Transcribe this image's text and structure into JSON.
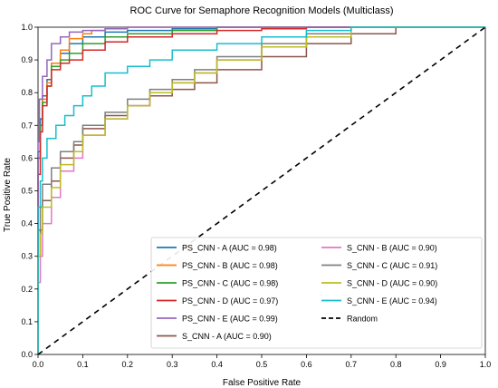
{
  "chart_data": {
    "type": "line",
    "title": "ROC Curve for Semaphore Recognition Models (Multiclass)",
    "xlabel": "False Positive Rate",
    "ylabel": "True Positive Rate",
    "xlim": [
      0.0,
      1.0
    ],
    "ylim": [
      0.0,
      1.0
    ],
    "x_ticks": [
      "0.0",
      "0.1",
      "0.2",
      "0.3",
      "0.4",
      "0.5",
      "0.6",
      "0.7",
      "0.8",
      "0.9",
      "1.0"
    ],
    "y_ticks": [
      "0.0",
      "0.1",
      "0.2",
      "0.3",
      "0.4",
      "0.5",
      "0.6",
      "0.7",
      "0.8",
      "0.9",
      "1.0"
    ],
    "grid": false,
    "legend_position": "lower-right",
    "series": [
      {
        "name": "PS_CNN - A (AUC = 0.98)",
        "color": "#1f77b4",
        "x": [
          0,
          0.005,
          0.01,
          0.02,
          0.03,
          0.05,
          0.07,
          0.1,
          0.15,
          0.2,
          0.3,
          0.4,
          0.6,
          0.8,
          1.0
        ],
        "y": [
          0,
          0.62,
          0.72,
          0.79,
          0.84,
          0.89,
          0.92,
          0.95,
          0.97,
          0.985,
          0.99,
          0.995,
          1.0,
          1.0,
          1.0
        ]
      },
      {
        "name": "PS_CNN - B (AUC = 0.98)",
        "color": "#ff7f0e",
        "x": [
          0,
          0.005,
          0.01,
          0.02,
          0.03,
          0.05,
          0.07,
          0.1,
          0.12,
          0.15,
          0.2,
          0.3,
          0.4,
          0.6,
          0.8,
          1.0
        ],
        "y": [
          0,
          0.6,
          0.7,
          0.78,
          0.83,
          0.89,
          0.93,
          0.965,
          0.98,
          0.99,
          0.995,
          1.0,
          1.0,
          1.0,
          1.0,
          1.0
        ]
      },
      {
        "name": "PS_CNN - C (AUC = 0.98)",
        "color": "#2ca02c",
        "x": [
          0,
          0.005,
          0.01,
          0.02,
          0.03,
          0.05,
          0.07,
          0.1,
          0.15,
          0.2,
          0.3,
          0.4,
          0.6,
          0.8,
          1.0
        ],
        "y": [
          0,
          0.6,
          0.7,
          0.77,
          0.82,
          0.88,
          0.9,
          0.92,
          0.95,
          0.97,
          0.98,
          0.99,
          1.0,
          1.0,
          1.0
        ]
      },
      {
        "name": "PS_CNN - D (AUC = 0.97)",
        "color": "#d62728",
        "x": [
          0,
          0.005,
          0.01,
          0.02,
          0.03,
          0.05,
          0.07,
          0.1,
          0.15,
          0.2,
          0.3,
          0.4,
          0.5,
          0.6,
          0.8,
          1.0
        ],
        "y": [
          0,
          0.55,
          0.68,
          0.76,
          0.82,
          0.87,
          0.89,
          0.9,
          0.93,
          0.955,
          0.97,
          0.98,
          0.99,
          0.995,
          1.0,
          1.0
        ]
      },
      {
        "name": "PS_CNN - E (AUC = 0.99)",
        "color": "#9467bd",
        "x": [
          0,
          0.003,
          0.01,
          0.02,
          0.03,
          0.05,
          0.07,
          0.1,
          0.15,
          0.2,
          0.3,
          0.4,
          0.6,
          0.8,
          1.0
        ],
        "y": [
          0,
          0.65,
          0.78,
          0.85,
          0.9,
          0.95,
          0.97,
          0.985,
          0.99,
          0.995,
          1.0,
          1.0,
          1.0,
          1.0,
          1.0
        ]
      },
      {
        "name": "S_CNN - A (AUC = 0.90)",
        "color": "#8c564b",
        "x": [
          0,
          0.005,
          0.01,
          0.03,
          0.05,
          0.08,
          0.1,
          0.15,
          0.2,
          0.25,
          0.3,
          0.35,
          0.4,
          0.5,
          0.6,
          0.7,
          0.8,
          0.9,
          1.0
        ],
        "y": [
          0,
          0.3,
          0.38,
          0.47,
          0.53,
          0.6,
          0.64,
          0.69,
          0.73,
          0.76,
          0.79,
          0.81,
          0.83,
          0.87,
          0.91,
          0.95,
          0.98,
          1.0,
          1.0
        ]
      },
      {
        "name": "S_CNN - B (AUC = 0.90)",
        "color": "#e377c2",
        "x": [
          0,
          0.005,
          0.01,
          0.03,
          0.05,
          0.08,
          0.1,
          0.15,
          0.2,
          0.25,
          0.3,
          0.35,
          0.4,
          0.5,
          0.6,
          0.7,
          0.8,
          1.0
        ],
        "y": [
          0,
          0.22,
          0.3,
          0.4,
          0.48,
          0.56,
          0.6,
          0.67,
          0.72,
          0.76,
          0.8,
          0.83,
          0.86,
          0.9,
          0.94,
          0.97,
          1.0,
          1.0
        ]
      },
      {
        "name": "S_CNN - C (AUC = 0.91)",
        "color": "#7f7f7f",
        "x": [
          0,
          0.005,
          0.01,
          0.03,
          0.05,
          0.08,
          0.1,
          0.15,
          0.2,
          0.25,
          0.3,
          0.35,
          0.4,
          0.5,
          0.6,
          0.7,
          0.8,
          1.0
        ],
        "y": [
          0,
          0.38,
          0.45,
          0.52,
          0.57,
          0.62,
          0.65,
          0.7,
          0.74,
          0.78,
          0.81,
          0.84,
          0.87,
          0.91,
          0.95,
          0.98,
          1.0,
          1.0
        ]
      },
      {
        "name": "S_CNN - D (AUC = 0.90)",
        "color": "#bcbd22",
        "x": [
          0,
          0.005,
          0.01,
          0.03,
          0.05,
          0.08,
          0.1,
          0.15,
          0.2,
          0.25,
          0.3,
          0.35,
          0.4,
          0.5,
          0.6,
          0.7,
          0.8,
          1.0
        ],
        "y": [
          0,
          0.3,
          0.37,
          0.45,
          0.51,
          0.58,
          0.62,
          0.67,
          0.72,
          0.76,
          0.8,
          0.83,
          0.86,
          0.9,
          0.94,
          0.97,
          1.0,
          1.0
        ]
      },
      {
        "name": "S_CNN - E (AUC = 0.94)",
        "color": "#17becf",
        "x": [
          0,
          0.005,
          0.01,
          0.02,
          0.04,
          0.06,
          0.08,
          0.1,
          0.12,
          0.15,
          0.2,
          0.25,
          0.3,
          0.4,
          0.5,
          0.6,
          0.7,
          0.8,
          1.0
        ],
        "y": [
          0,
          0.45,
          0.53,
          0.6,
          0.66,
          0.7,
          0.73,
          0.76,
          0.79,
          0.82,
          0.86,
          0.88,
          0.9,
          0.93,
          0.95,
          0.97,
          0.99,
          1.0,
          1.0
        ]
      },
      {
        "name": "Random",
        "color": "#000000",
        "dashed": true,
        "x": [
          0,
          1.0
        ],
        "y": [
          0,
          1.0
        ]
      }
    ]
  }
}
